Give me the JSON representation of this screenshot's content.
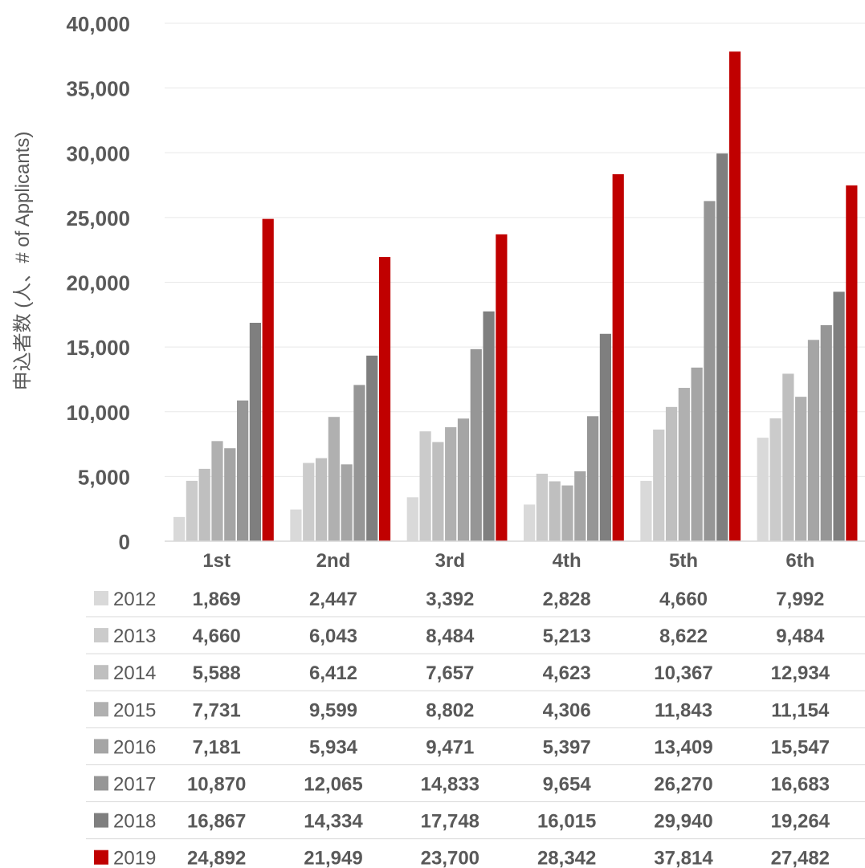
{
  "chart_data": {
    "type": "bar",
    "title": "",
    "xlabel": "",
    "ylabel": "申込者数 (人、# of Applicants)",
    "ylim": [
      0,
      40000
    ],
    "yticks": [
      "0",
      "5,000",
      "10,000",
      "15,000",
      "20,000",
      "25,000",
      "30,000",
      "35,000",
      "40,000"
    ],
    "categories": [
      "1st",
      "2nd",
      "3rd",
      "4th",
      "5th",
      "6th"
    ],
    "grid": true,
    "legend": "data-table-left",
    "series": [
      {
        "name": "2012",
        "color": "#d9d9d9",
        "values": [
          1869,
          2447,
          3392,
          2828,
          4660,
          7992
        ],
        "labels": [
          "1,869",
          "2,447",
          "3,392",
          "2,828",
          "4,660",
          "7,992"
        ]
      },
      {
        "name": "2013",
        "color": "#cbcbcb",
        "values": [
          4660,
          6043,
          8484,
          5213,
          8622,
          9484
        ],
        "labels": [
          "4,660",
          "6,043",
          "8,484",
          "5,213",
          "8,622",
          "9,484"
        ]
      },
      {
        "name": "2014",
        "color": "#bfbfbf",
        "values": [
          5588,
          6412,
          7657,
          4623,
          10367,
          12934
        ],
        "labels": [
          "5,588",
          "6,412",
          "7,657",
          "4,623",
          "10,367",
          "12,934"
        ]
      },
      {
        "name": "2015",
        "color": "#b0b0b0",
        "values": [
          7731,
          9599,
          8802,
          4306,
          11843,
          11154
        ],
        "labels": [
          "7,731",
          "9,599",
          "8,802",
          "4,306",
          "11,843",
          "11,154"
        ]
      },
      {
        "name": "2016",
        "color": "#a5a5a5",
        "values": [
          7181,
          5934,
          9471,
          5397,
          13409,
          15547
        ],
        "labels": [
          "7,181",
          "5,934",
          "9,471",
          "5,397",
          "13,409",
          "15,547"
        ]
      },
      {
        "name": "2017",
        "color": "#969696",
        "values": [
          10870,
          12065,
          14833,
          9654,
          26270,
          16683
        ],
        "labels": [
          "10,870",
          "12,065",
          "14,833",
          "9,654",
          "26,270",
          "16,683"
        ]
      },
      {
        "name": "2018",
        "color": "#7f7f7f",
        "values": [
          16867,
          14334,
          17748,
          16015,
          29940,
          19264
        ],
        "labels": [
          "16,867",
          "14,334",
          "17,748",
          "16,015",
          "29,940",
          "19,264"
        ]
      },
      {
        "name": "2019",
        "color": "#c00000",
        "values": [
          24892,
          21949,
          23700,
          28342,
          37814,
          27482
        ],
        "labels": [
          "24,892",
          "21,949",
          "23,700",
          "28,342",
          "37,814",
          "27,482"
        ]
      }
    ]
  }
}
